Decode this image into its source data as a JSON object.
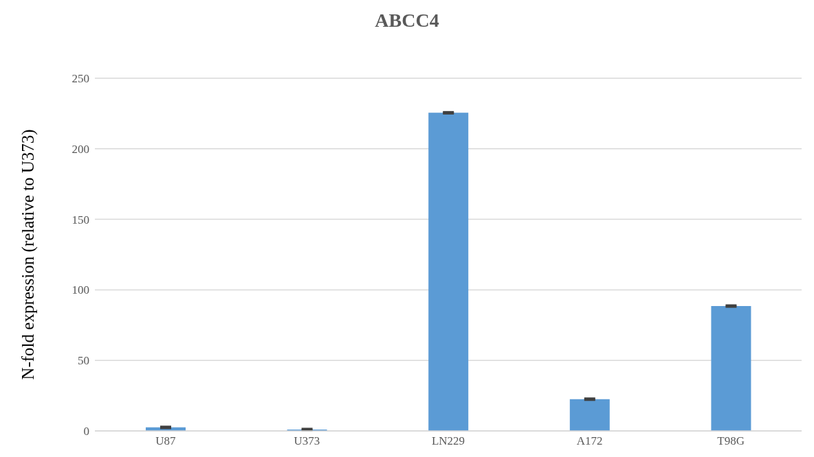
{
  "chart_data": {
    "type": "bar",
    "title": "ABCC4",
    "ylabel": "N-fold expression (relative to U373)",
    "categories": [
      "U87",
      "U373",
      "LN229",
      "A172",
      "T98G"
    ],
    "series": [
      {
        "color": "#5b9bd5",
        "values": [
          2.5,
          1,
          225.5,
          22.5,
          88.5
        ],
        "errors": [
          0.5,
          0.5,
          0.5,
          0.5,
          0.5
        ]
      }
    ],
    "ylim": [
      0,
      250
    ],
    "yticks": [
      0,
      50,
      100,
      150,
      200,
      250
    ],
    "grid": "y",
    "legend": false
  }
}
